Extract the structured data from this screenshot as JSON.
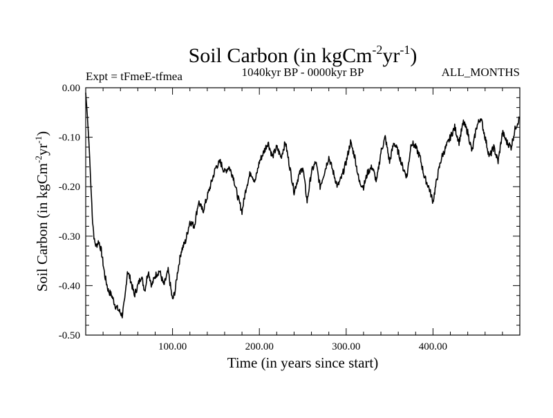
{
  "chart_data": {
    "type": "line",
    "title_main": "Soil Carbon (in kgCm",
    "title_sup1": "-2",
    "title_mid": "yr",
    "title_sup2": "-1",
    "title_end": ")",
    "left_label": "Expt = tFmeE-tfmea",
    "center_label": "1040kyr BP - 0000kyr BP",
    "right_label": "ALL_MONTHS",
    "ylabel_main": "Soil Carbon (in kgCm",
    "ylabel_sup1": "-2",
    "ylabel_mid": "yr",
    "ylabel_sup2": "-1",
    "ylabel_end": ")",
    "xlabel": "Time (in years since start)",
    "xlim": [
      0,
      500
    ],
    "ylim": [
      -0.5,
      0.0
    ],
    "x_ticks": [
      100,
      200,
      300,
      400
    ],
    "x_tick_labels": [
      "100.00",
      "200.00",
      "300.00",
      "400.00"
    ],
    "y_ticks": [
      0.0,
      -0.1,
      -0.2,
      -0.3,
      -0.4,
      -0.5
    ],
    "y_tick_labels": [
      "0.00",
      "-0.10",
      "-0.20",
      "-0.30",
      "-0.40",
      "-0.50"
    ],
    "series": [
      {
        "name": "Soil Carbon",
        "color": "#000000",
        "x": [
          0,
          2,
          4,
          6,
          8,
          10,
          12,
          15,
          18,
          22,
          26,
          30,
          34,
          38,
          42,
          45,
          48,
          52,
          56,
          60,
          64,
          68,
          72,
          76,
          80,
          85,
          90,
          95,
          100,
          103,
          106,
          110,
          115,
          120,
          125,
          130,
          135,
          140,
          145,
          150,
          155,
          160,
          165,
          170,
          175,
          180,
          185,
          190,
          195,
          200,
          205,
          210,
          215,
          220,
          225,
          230,
          235,
          240,
          245,
          250,
          255,
          260,
          265,
          270,
          275,
          280,
          285,
          290,
          295,
          300,
          305,
          310,
          315,
          320,
          325,
          330,
          335,
          340,
          345,
          350,
          355,
          360,
          365,
          370,
          375,
          380,
          385,
          390,
          395,
          400,
          405,
          410,
          415,
          420,
          425,
          430,
          435,
          440,
          445,
          450,
          455,
          460,
          465,
          470,
          475,
          480,
          485,
          490,
          495,
          500
        ],
        "values": [
          -0.01,
          -0.06,
          -0.12,
          -0.2,
          -0.27,
          -0.31,
          -0.32,
          -0.31,
          -0.33,
          -0.38,
          -0.41,
          -0.42,
          -0.44,
          -0.45,
          -0.46,
          -0.43,
          -0.37,
          -0.39,
          -0.42,
          -0.4,
          -0.38,
          -0.41,
          -0.37,
          -0.4,
          -0.38,
          -0.37,
          -0.4,
          -0.37,
          -0.43,
          -0.41,
          -0.37,
          -0.33,
          -0.31,
          -0.27,
          -0.28,
          -0.23,
          -0.25,
          -0.22,
          -0.19,
          -0.16,
          -0.15,
          -0.17,
          -0.16,
          -0.18,
          -0.22,
          -0.25,
          -0.2,
          -0.17,
          -0.19,
          -0.15,
          -0.13,
          -0.11,
          -0.14,
          -0.12,
          -0.14,
          -0.11,
          -0.16,
          -0.21,
          -0.18,
          -0.16,
          -0.23,
          -0.17,
          -0.15,
          -0.2,
          -0.17,
          -0.14,
          -0.17,
          -0.2,
          -0.18,
          -0.15,
          -0.11,
          -0.14,
          -0.19,
          -0.2,
          -0.17,
          -0.16,
          -0.19,
          -0.13,
          -0.1,
          -0.15,
          -0.11,
          -0.13,
          -0.16,
          -0.18,
          -0.11,
          -0.12,
          -0.14,
          -0.18,
          -0.2,
          -0.23,
          -0.18,
          -0.14,
          -0.12,
          -0.1,
          -0.08,
          -0.11,
          -0.07,
          -0.09,
          -0.13,
          -0.08,
          -0.06,
          -0.1,
          -0.14,
          -0.12,
          -0.15,
          -0.09,
          -0.11,
          -0.12,
          -0.08,
          -0.06
        ]
      }
    ]
  }
}
